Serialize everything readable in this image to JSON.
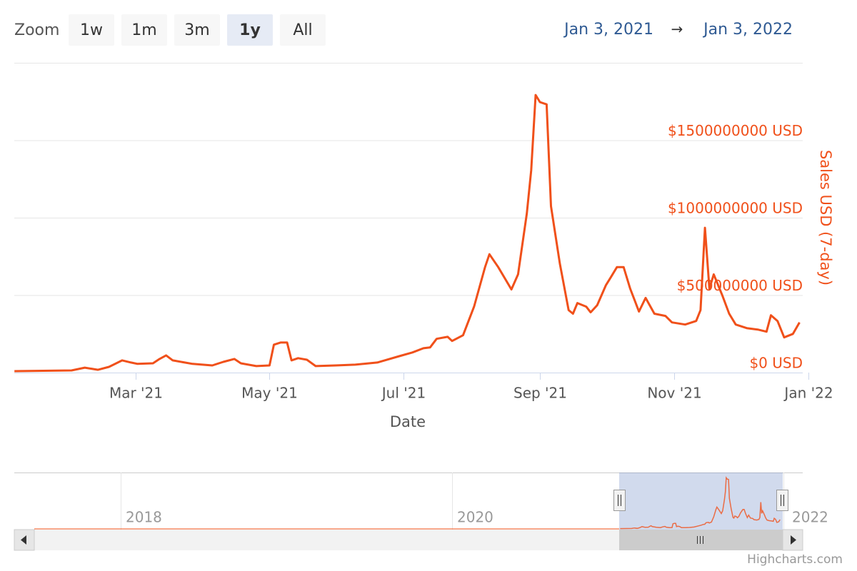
{
  "range_selector": {
    "label": "Zoom",
    "buttons": [
      "1w",
      "1m",
      "3m",
      "1y",
      "All"
    ],
    "selected": 3,
    "from": "Jan 3, 2021",
    "separator": "→",
    "to": "Jan 3, 2022"
  },
  "chart_data": {
    "type": "line",
    "x_label": "Date",
    "y_label": "Sales USD (7-day)",
    "x": [
      "2021-01-05",
      "2021-01-31",
      "2021-02-06",
      "2021-02-12",
      "2021-02-17",
      "2021-02-23",
      "2021-02-27",
      "2021-03-02",
      "2021-03-09",
      "2021-03-12",
      "2021-03-15",
      "2021-03-18",
      "2021-03-27",
      "2021-04-05",
      "2021-04-10",
      "2021-04-15",
      "2021-04-18",
      "2021-04-25",
      "2021-05-01",
      "2021-05-03",
      "2021-05-06",
      "2021-05-09",
      "2021-05-11",
      "2021-05-14",
      "2021-05-18",
      "2021-05-22",
      "2021-05-31",
      "2021-06-09",
      "2021-06-19",
      "2021-06-29",
      "2021-07-05",
      "2021-07-10",
      "2021-07-13",
      "2021-07-16",
      "2021-07-21",
      "2021-07-23",
      "2021-07-28",
      "2021-08-02",
      "2021-08-07",
      "2021-08-09",
      "2021-08-13",
      "2021-08-19",
      "2021-08-22",
      "2021-08-26",
      "2021-08-28",
      "2021-08-30",
      "2021-09-01",
      "2021-09-04",
      "2021-09-06",
      "2021-09-10",
      "2021-09-14",
      "2021-09-16",
      "2021-09-18",
      "2021-09-22",
      "2021-09-24",
      "2021-09-27",
      "2021-10-01",
      "2021-10-03",
      "2021-10-06",
      "2021-10-09",
      "2021-10-12",
      "2021-10-16",
      "2021-10-19",
      "2021-10-23",
      "2021-10-28",
      "2021-10-31",
      "2021-11-06",
      "2021-11-11",
      "2021-11-13",
      "2021-11-15",
      "2021-11-17",
      "2021-11-19",
      "2021-11-23",
      "2021-11-26",
      "2021-11-29",
      "2021-12-04",
      "2021-12-09",
      "2021-12-13",
      "2021-12-15",
      "2021-12-18",
      "2021-12-21",
      "2021-12-25",
      "2021-12-28"
    ],
    "series": [
      {
        "name": "Sales USD (7-day)",
        "color": "#f0501a",
        "values": [
          9000000,
          14000000,
          32000000,
          18000000,
          37000000,
          79000000,
          65000000,
          56000000,
          60000000,
          88000000,
          111000000,
          79000000,
          56000000,
          46000000,
          69000000,
          88000000,
          60000000,
          42000000,
          46000000,
          180000000,
          194000000,
          194000000,
          79000000,
          93000000,
          83000000,
          42000000,
          46000000,
          51000000,
          65000000,
          106000000,
          130000000,
          157000000,
          162000000,
          218000000,
          231000000,
          204000000,
          241000000,
          426000000,
          681000000,
          764000000,
          681000000,
          537000000,
          634000000,
          1028000000,
          1306000000,
          1792000000,
          1746000000,
          1732000000,
          1074000000,
          704000000,
          403000000,
          380000000,
          449000000,
          426000000,
          389000000,
          435000000,
          565000000,
          611000000,
          681000000,
          681000000,
          542000000,
          394000000,
          482000000,
          380000000,
          366000000,
          324000000,
          310000000,
          333000000,
          403000000,
          935000000,
          542000000,
          634000000,
          495000000,
          380000000,
          310000000,
          287000000,
          278000000,
          264000000,
          370000000,
          333000000,
          227000000,
          250000000,
          324000000
        ]
      }
    ],
    "xlim": [
      "2021-01-03",
      "2022-01-03"
    ],
    "xticks": [
      {
        "value": "2021-03-01",
        "label": "Mar '21"
      },
      {
        "value": "2021-05-01",
        "label": "May '21"
      },
      {
        "value": "2021-07-01",
        "label": "Jul '21"
      },
      {
        "value": "2021-09-01",
        "label": "Sep '21"
      },
      {
        "value": "2021-11-01",
        "label": "Nov '21"
      },
      {
        "value": "2022-01-01",
        "label": "Jan '22"
      }
    ],
    "ylim": [
      0,
      2000000000
    ],
    "yticks": [
      {
        "value": 0,
        "label": "$0 USD"
      },
      {
        "value": 500000000,
        "label": "$500000000 USD"
      },
      {
        "value": 1000000000,
        "label": "$1000000000 USD"
      },
      {
        "value": 1500000000,
        "label": "$1500000000 USD"
      }
    ],
    "grid": true
  },
  "navigator": {
    "labels": [
      "2018",
      "2020",
      "2022"
    ]
  },
  "credits": "Highcharts.com"
}
